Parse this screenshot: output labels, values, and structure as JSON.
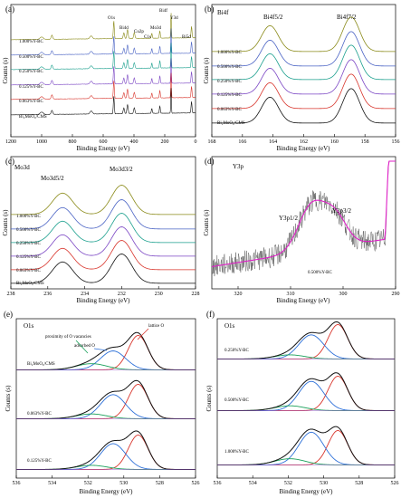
{
  "figure": {
    "panels": [
      {
        "id": "a",
        "label": "(a)",
        "xlabel": "Binding Energy (eV)",
        "ylabel": "Counts (s)",
        "xticks": [
          "1200",
          "1000",
          "800",
          "600",
          "400",
          "200",
          "0"
        ],
        "sample_labels": [
          "1.000%Y-BC",
          "0.500%Y-BC",
          "0.250%Y-BC",
          "0.125%Y-BC",
          "0.063%Y-BC",
          "Bi₂MoO₆/CMS"
        ],
        "peak_labels": [
          "O1s",
          "Bi4d",
          "Cu2p",
          "Mo3d",
          "C1s",
          "Bi4f",
          "Y3d",
          "Bi5d"
        ]
      },
      {
        "id": "b",
        "label": "(b)",
        "title": "Bi4f",
        "xlabel": "Binding Energy (eV)",
        "ylabel": "Counts (s)",
        "xticks": [
          "168",
          "166",
          "164",
          "162",
          "160",
          "158",
          "156"
        ],
        "sample_labels": [
          "1.000%Y-BC",
          "0.500%Y-BC",
          "0.250%Y-BC",
          "0.125%Y-BC",
          "0.063%Y-BC",
          "Bi₂MoO₆/CMS"
        ],
        "peak_labels": [
          "Bi4f5/2",
          "Bi4f7/2"
        ]
      },
      {
        "id": "c",
        "label": "(c)",
        "title": "Mo3d",
        "xlabel": "Binding Energy (eV)",
        "ylabel": "Counts (s)",
        "xticks": [
          "238",
          "236",
          "234",
          "232",
          "230",
          "228"
        ],
        "sample_labels": [
          "1.000%Y-BC",
          "0.500%Y-BC",
          "0.250%Y-BC",
          "0.125%Y-BC",
          "0.063%Y-BC",
          "Bi₂MoO₆/CMS"
        ],
        "peak_labels": [
          "Mo3d5/2",
          "Mo3d3/2"
        ]
      },
      {
        "id": "d",
        "label": "(d)",
        "title": "Y3p",
        "xlabel": "Binding Energy (eV)",
        "ylabel": "Counts (s)",
        "xticks": [
          "320",
          "310",
          "300",
          "290"
        ],
        "sample_labels": [
          "0.500%Y-BC"
        ],
        "peak_labels": [
          "Y3p1/2",
          "Y3p3/2"
        ]
      },
      {
        "id": "e",
        "label": "(e)",
        "title": "O1s",
        "xlabel": "Binding Energy (eV)",
        "ylabel": "Counts (s)",
        "xticks": [
          "536",
          "534",
          "532",
          "530",
          "528",
          "526"
        ],
        "sample_labels": [
          "Bi₂MoO₆/CMS",
          "0.063%Y-BC",
          "0.125%Y-BC"
        ],
        "annotations": [
          "proximity of O vacancies",
          "adsorbed O",
          "lattice O"
        ]
      },
      {
        "id": "f",
        "label": "(f)",
        "title": "O1s",
        "xlabel": "Binding Energy (eV)",
        "ylabel": "Counts (s)",
        "xticks": [
          "536",
          "534",
          "532",
          "530",
          "528",
          "526"
        ],
        "sample_labels": [
          "0.250%Y-BC",
          "0.500%Y-BC",
          "1.000%Y-BC"
        ]
      }
    ]
  },
  "chart_data": [
    {
      "type": "line",
      "panel": "a",
      "xlim": [
        1200,
        0
      ],
      "series": [
        {
          "name": "1.000%Y-BC",
          "color": "#8a8a18"
        },
        {
          "name": "0.500%Y-BC",
          "color": "#4a63c4"
        },
        {
          "name": "0.250%Y-BC",
          "color": "#1a9f8d"
        },
        {
          "name": "0.125%Y-BC",
          "color": "#7b46c4"
        },
        {
          "name": "0.063%Y-BC",
          "color": "#d8342b"
        },
        {
          "name": "Bi₂MoO₆/CMS",
          "color": "#111111"
        }
      ],
      "peaks": [
        {
          "x": 531
        },
        {
          "x": 442
        },
        {
          "x": 933
        },
        {
          "x": 284
        },
        {
          "x": 232
        },
        {
          "x": 159
        },
        {
          "x": 158
        },
        {
          "x": 26
        }
      ]
    },
    {
      "type": "line",
      "panel": "b",
      "xlim": [
        168,
        156
      ],
      "series": [
        {
          "name": "1.000%Y-BC",
          "color": "#8a8a18"
        },
        {
          "name": "0.500%Y-BC",
          "color": "#4a63c4"
        },
        {
          "name": "0.250%Y-BC",
          "color": "#1a9f8d"
        },
        {
          "name": "0.125%Y-BC",
          "color": "#7b46c4"
        },
        {
          "name": "0.063%Y-BC",
          "color": "#d8342b"
        },
        {
          "name": "Bi₂MoO₆/CMS",
          "color": "#111111"
        }
      ],
      "peaks": [
        {
          "x": 164.2
        },
        {
          "x": 158.9
        }
      ]
    },
    {
      "type": "line",
      "panel": "c",
      "xlim": [
        238,
        228
      ],
      "series": [
        {
          "name": "1.000%Y-BC",
          "color": "#8a8a18"
        },
        {
          "name": "0.500%Y-BC",
          "color": "#4a63c4"
        },
        {
          "name": "0.250%Y-BC",
          "color": "#1a9f8d"
        },
        {
          "name": "0.125%Y-BC",
          "color": "#7b46c4"
        },
        {
          "name": "0.063%Y-BC",
          "color": "#d8342b"
        },
        {
          "name": "Bi₂MoO₆/CMS",
          "color": "#111111"
        }
      ],
      "peaks": [
        {
          "x": 235.2
        },
        {
          "x": 232.0
        }
      ]
    },
    {
      "type": "line",
      "panel": "d",
      "xlim": [
        325,
        290
      ],
      "series": [
        {
          "name": "0.500%Y-BC",
          "color": "#444444"
        },
        {
          "name": "",
          "color": "#e020c8"
        }
      ],
      "peaks": [
        {
          "x": 306
        },
        {
          "x": 301.5
        }
      ]
    },
    {
      "type": "line",
      "panel": "e",
      "xlim": [
        536,
        526
      ],
      "series": [
        {
          "name": "Bi₂MoO₆/CMS",
          "color": "#111111"
        },
        {
          "name": "0.063%Y-BC",
          "color": "#111111"
        },
        {
          "name": "0.125%Y-BC",
          "color": "#111111"
        }
      ],
      "components": [
        {
          "name": "lattice O",
          "x": 529.2,
          "color": "#d8342b"
        },
        {
          "name": "adsorbed O",
          "x": 530.6,
          "color": "#2b6fd8"
        },
        {
          "name": "proximity of O vacancies",
          "x": 531.8,
          "color": "#1aa05a"
        }
      ]
    },
    {
      "type": "line",
      "panel": "f",
      "xlim": [
        536,
        526
      ],
      "series": [
        {
          "name": "0.250%Y-BC",
          "color": "#111111"
        },
        {
          "name": "0.500%Y-BC",
          "color": "#111111"
        },
        {
          "name": "1.000%Y-BC",
          "color": "#111111"
        }
      ],
      "components": [
        {
          "x": 529.2,
          "color": "#d8342b"
        },
        {
          "x": 530.7,
          "color": "#2b6fd8"
        },
        {
          "x": 531.9,
          "color": "#1aa05a"
        }
      ]
    }
  ]
}
